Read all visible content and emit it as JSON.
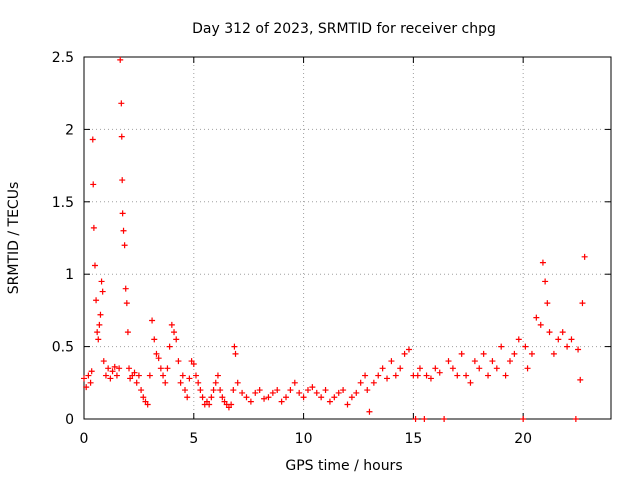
{
  "chart_data": {
    "type": "scatter",
    "title": "Day 312 of 2023, SRMTID for receiver chpg",
    "xlabel": "GPS time / hours",
    "ylabel": "SRMTID / TECUs",
    "xlim": [
      0,
      24
    ],
    "ylim": [
      0,
      2.5
    ],
    "xticks": [
      0,
      5,
      10,
      15,
      20
    ],
    "xtick_labels": [
      "0",
      "5",
      "10",
      "15",
      "20"
    ],
    "yticks": [
      0,
      0.5,
      1,
      1.5,
      2,
      2.5
    ],
    "ytick_labels": [
      "0",
      "0.5",
      "1",
      "1.5",
      "2",
      "2.5"
    ],
    "grid": true,
    "marker": "+",
    "series": [
      {
        "name": "SRMTID",
        "color": "#ff0000",
        "x": [
          0.0,
          0.1,
          0.2,
          0.3,
          0.35,
          0.4,
          0.42,
          0.45,
          0.5,
          0.55,
          0.6,
          0.65,
          0.7,
          0.75,
          0.8,
          0.85,
          0.9,
          1.0,
          1.1,
          1.2,
          1.3,
          1.4,
          1.5,
          1.6,
          1.65,
          1.7,
          1.72,
          1.74,
          1.76,
          1.8,
          1.85,
          1.9,
          1.95,
          2.0,
          2.05,
          2.1,
          2.2,
          2.3,
          2.4,
          2.5,
          2.6,
          2.7,
          2.8,
          2.9,
          3.0,
          3.1,
          3.2,
          3.3,
          3.4,
          3.5,
          3.6,
          3.7,
          3.8,
          3.9,
          4.0,
          4.1,
          4.2,
          4.3,
          4.4,
          4.5,
          4.6,
          4.7,
          4.8,
          4.9,
          5.0,
          5.1,
          5.2,
          5.3,
          5.4,
          5.5,
          5.6,
          5.7,
          5.8,
          5.9,
          6.0,
          6.1,
          6.2,
          6.3,
          6.4,
          6.5,
          6.6,
          6.7,
          6.8,
          6.85,
          6.9,
          7.0,
          7.2,
          7.4,
          7.6,
          7.8,
          8.0,
          8.2,
          8.4,
          8.6,
          8.8,
          9.0,
          9.2,
          9.4,
          9.6,
          9.8,
          10.0,
          10.2,
          10.4,
          10.6,
          10.8,
          11.0,
          11.2,
          11.4,
          11.6,
          11.8,
          12.0,
          12.2,
          12.4,
          12.6,
          12.8,
          12.9,
          13.0,
          13.2,
          13.4,
          13.6,
          13.8,
          14.0,
          14.2,
          14.4,
          14.6,
          14.8,
          15.0,
          15.1,
          15.2,
          15.3,
          15.5,
          15.6,
          15.8,
          16.0,
          16.2,
          16.4,
          16.6,
          16.8,
          17.0,
          17.2,
          17.4,
          17.6,
          17.8,
          18.0,
          18.2,
          18.4,
          18.6,
          18.8,
          19.0,
          19.2,
          19.4,
          19.6,
          19.8,
          20.0,
          20.1,
          20.2,
          20.4,
          20.6,
          20.8,
          20.9,
          21.0,
          21.1,
          21.2,
          21.4,
          21.6,
          21.8,
          22.0,
          22.2,
          22.4,
          22.5,
          22.6,
          22.7,
          22.8
        ],
        "y": [
          0.28,
          0.22,
          0.3,
          0.25,
          0.33,
          1.93,
          1.62,
          1.32,
          1.06,
          0.82,
          0.6,
          0.55,
          0.65,
          0.72,
          0.95,
          0.88,
          0.4,
          0.3,
          0.35,
          0.28,
          0.33,
          0.36,
          0.3,
          0.35,
          2.48,
          2.18,
          1.95,
          1.65,
          1.42,
          1.3,
          1.2,
          0.9,
          0.8,
          0.6,
          0.35,
          0.28,
          0.3,
          0.32,
          0.25,
          0.3,
          0.2,
          0.15,
          0.12,
          0.1,
          0.3,
          0.68,
          0.55,
          0.45,
          0.42,
          0.35,
          0.3,
          0.25,
          0.35,
          0.5,
          0.65,
          0.6,
          0.55,
          0.4,
          0.25,
          0.3,
          0.2,
          0.15,
          0.28,
          0.4,
          0.38,
          0.3,
          0.25,
          0.2,
          0.15,
          0.1,
          0.12,
          0.1,
          0.15,
          0.2,
          0.25,
          0.3,
          0.2,
          0.15,
          0.12,
          0.1,
          0.08,
          0.1,
          0.2,
          0.5,
          0.45,
          0.25,
          0.18,
          0.15,
          0.12,
          0.18,
          0.2,
          0.14,
          0.15,
          0.18,
          0.2,
          0.12,
          0.15,
          0.2,
          0.25,
          0.18,
          0.15,
          0.2,
          0.22,
          0.18,
          0.15,
          0.2,
          0.12,
          0.15,
          0.18,
          0.2,
          0.1,
          0.15,
          0.18,
          0.25,
          0.3,
          0.2,
          0.05,
          0.25,
          0.3,
          0.35,
          0.28,
          0.4,
          0.3,
          0.35,
          0.45,
          0.48,
          0.3,
          0.0,
          0.3,
          0.35,
          0.0,
          0.3,
          0.28,
          0.35,
          0.32,
          0.0,
          0.4,
          0.35,
          0.3,
          0.45,
          0.3,
          0.25,
          0.4,
          0.35,
          0.45,
          0.3,
          0.4,
          0.35,
          0.5,
          0.3,
          0.4,
          0.45,
          0.55,
          0.0,
          0.5,
          0.35,
          0.45,
          0.7,
          0.65,
          1.08,
          0.95,
          0.8,
          0.6,
          0.45,
          0.55,
          0.6,
          0.5,
          0.55,
          0.0,
          0.48,
          0.27,
          0.8,
          1.12
        ]
      }
    ]
  }
}
